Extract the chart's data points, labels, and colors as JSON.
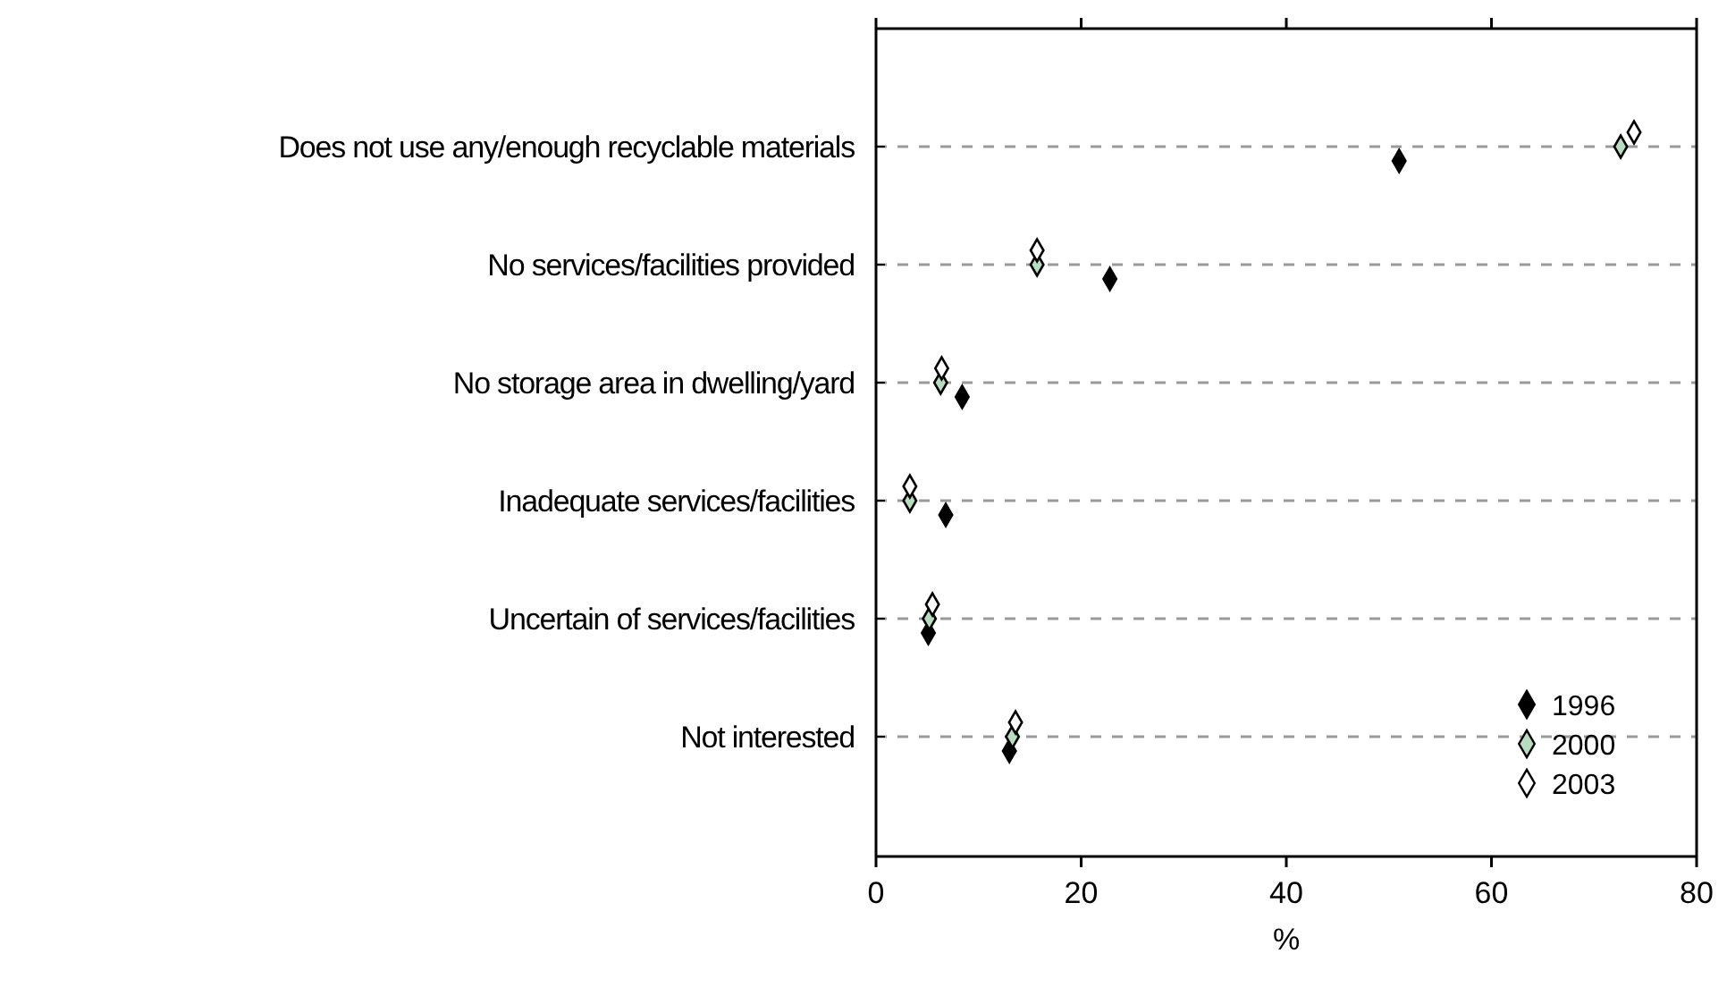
{
  "chart_data": {
    "type": "scatter",
    "orientation": "horizontal",
    "xlabel": "%",
    "categories": [
      "Does not use any/enough recyclable materials",
      "No services/facilities provided",
      "No storage area in dwelling/yard",
      "Inadequate services/facilities",
      "Uncertain of services/facilities",
      "Not interested"
    ],
    "series": [
      {
        "name": "1996",
        "color": "#000000",
        "values": [
          51.0,
          22.8,
          8.4,
          6.8,
          5.1,
          13.0
        ]
      },
      {
        "name": "2000",
        "color": "#b8dcc0",
        "values": [
          72.6,
          15.7,
          6.3,
          3.3,
          5.2,
          13.3
        ]
      },
      {
        "name": "2003",
        "color": "#ffffff",
        "values": [
          73.9,
          15.7,
          6.4,
          3.3,
          5.5,
          13.6
        ]
      }
    ],
    "xlim": [
      0,
      80
    ],
    "xticks": [
      0,
      20,
      40,
      60,
      80
    ],
    "grid": "y",
    "line_style": "dashed",
    "marker": "diamond",
    "legend": "bottom right"
  }
}
